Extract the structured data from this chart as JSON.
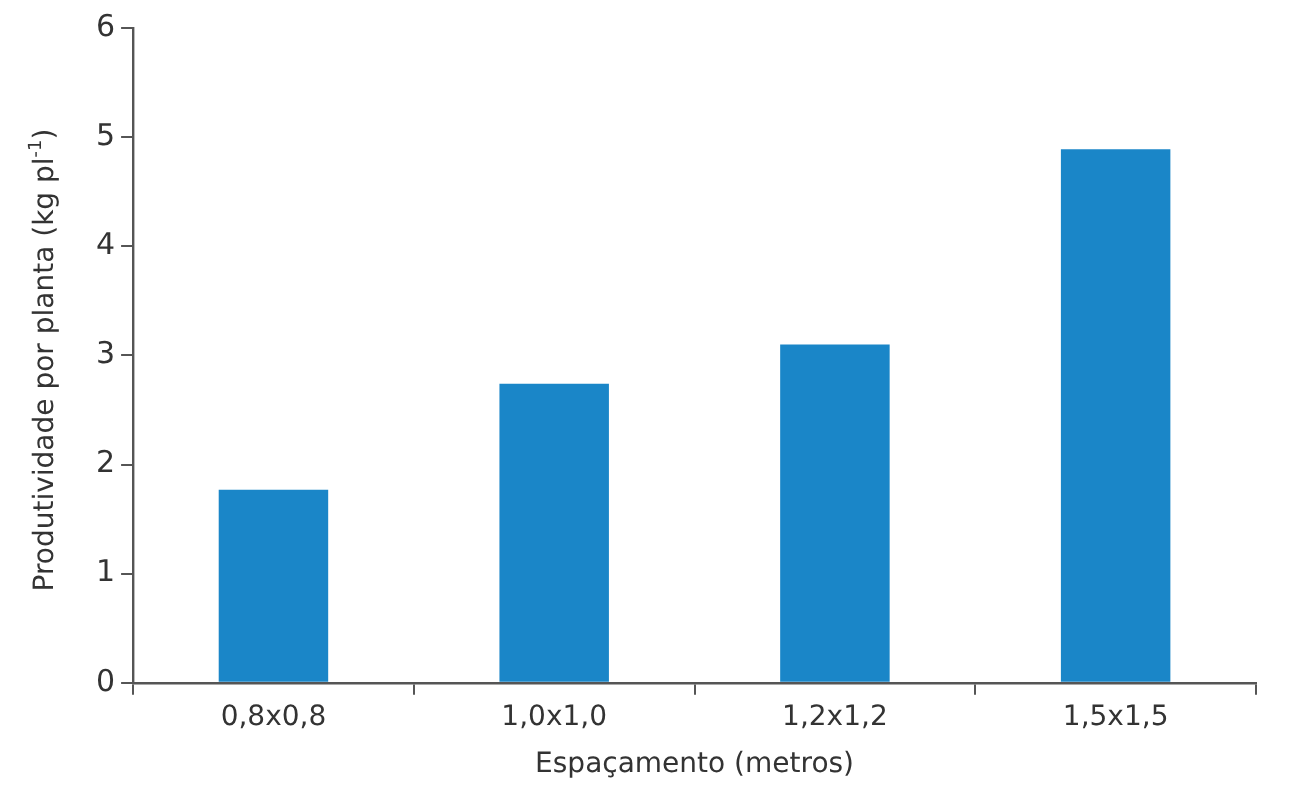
{
  "chart_data": {
    "type": "bar",
    "xlabel": "Espaçamento (metros)",
    "ylabel": "Produtividade por planta (kg pl$^{-1}$)",
    "categories": [
      "0,8x0,8",
      "1,0x1,0",
      "1,2x1,2",
      "1,5x1,5"
    ],
    "values": [
      1.77,
      2.74,
      3.1,
      4.89
    ],
    "color": "#1a86c8",
    "ylim": [
      0,
      6
    ],
    "yticks": [
      0,
      1,
      2,
      3,
      4,
      5,
      6
    ],
    "grid": false,
    "legend": false
  }
}
